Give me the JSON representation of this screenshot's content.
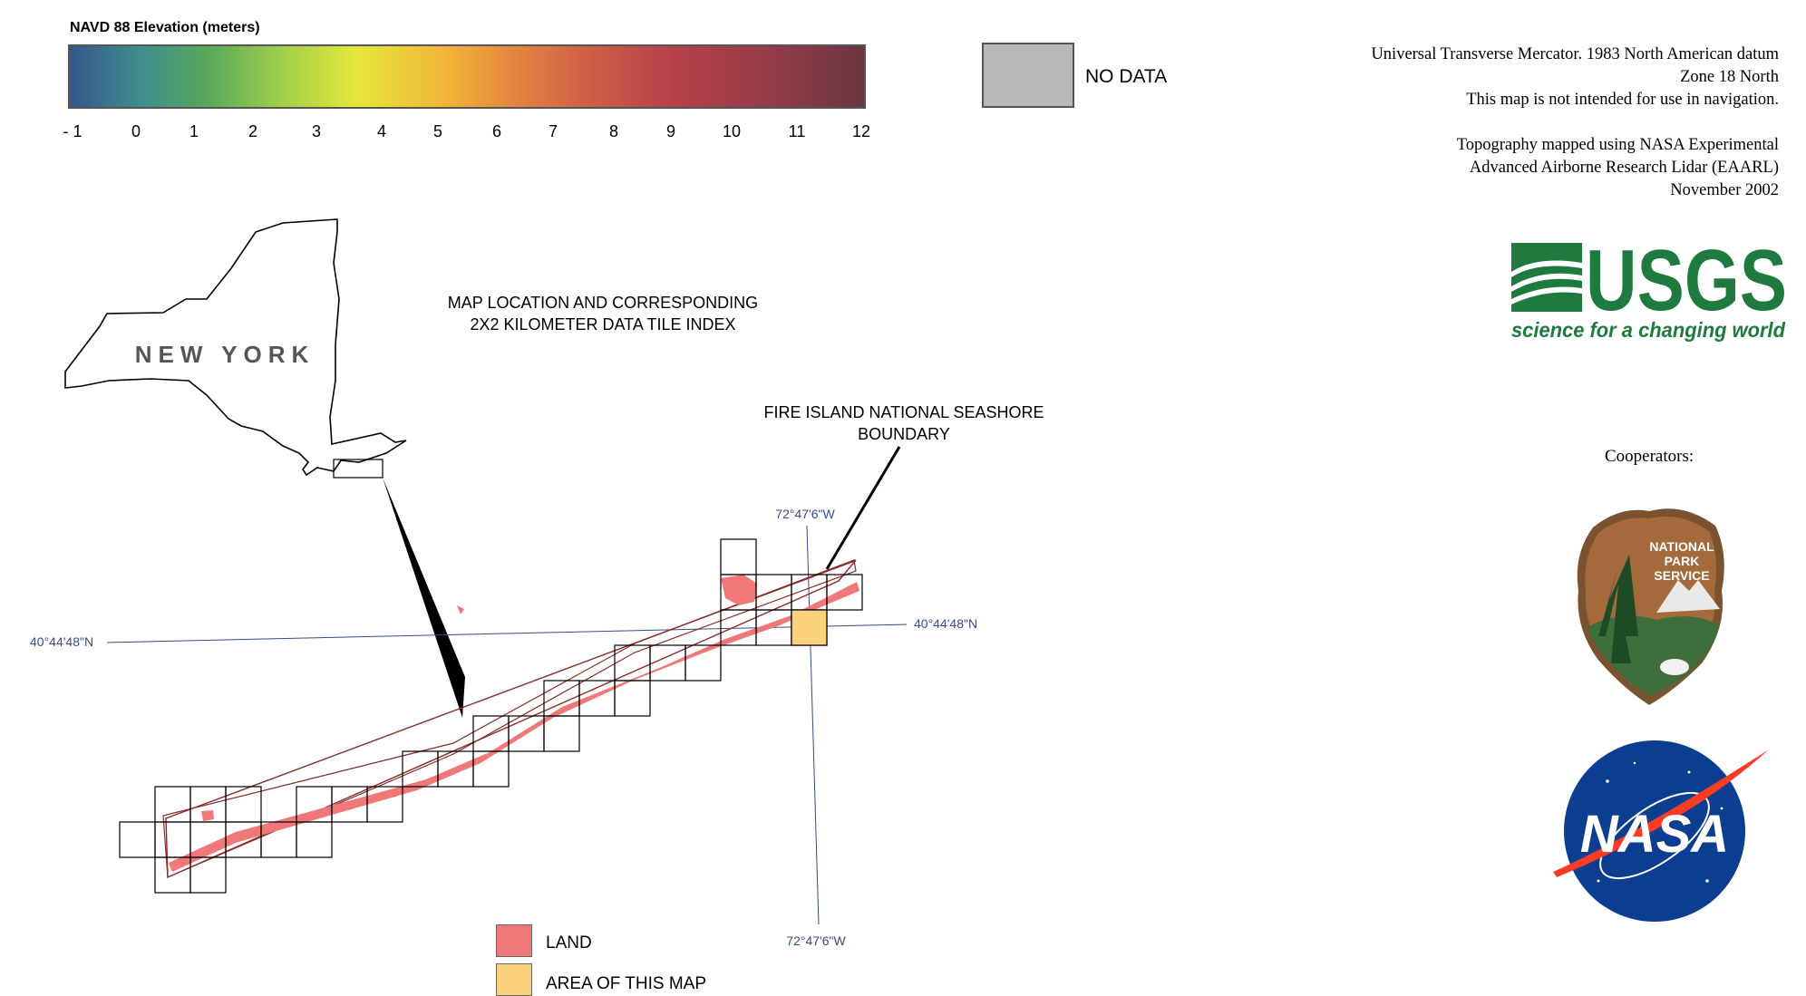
{
  "legend": {
    "title": "NAVD 88 Elevation (meters)",
    "ticks": [
      "- 1",
      "0",
      "1",
      "2",
      "3",
      "4",
      "5",
      "6",
      "7",
      "8",
      "9",
      "10",
      "11",
      "12"
    ],
    "range": [
      -1,
      12
    ],
    "ramp_colors": [
      "#34578c",
      "#3e8e8c",
      "#55a85c",
      "#9ccc4c",
      "#e5e83a",
      "#f2b13a",
      "#e78a3f",
      "#cf5f45",
      "#b6404a",
      "#953c48",
      "#6a3640"
    ]
  },
  "no_data": {
    "label": "NO DATA",
    "color": "#b8b8b8"
  },
  "notes": {
    "projection": [
      "Universal Transverse Mercator.  1983 North American datum",
      "Zone 18 North",
      "This map is not intended for use in navigation."
    ],
    "topography": [
      "Topography mapped using NASA Experimental",
      "Advanced Airborne Research Lidar (EAARL)",
      "November 2002"
    ]
  },
  "usgs": {
    "name": "USGS",
    "tagline": "science for a changing world",
    "color": "#1e7a3e"
  },
  "cooperators_label": "Cooperators:",
  "nps": {
    "lines": [
      "NATIONAL",
      "PARK",
      "SERVICE"
    ]
  },
  "nasa": {
    "name": "NASA"
  },
  "index_map": {
    "title_lines": [
      "MAP LOCATION AND CORRESPONDING",
      "2X2 KILOMETER DATA TILE INDEX"
    ],
    "state_label": "NEW YORK",
    "boundary_label_lines": [
      "FIRE ISLAND NATIONAL SEASHORE",
      "BOUNDARY"
    ],
    "lon_label_top": "72°47'6\"W",
    "lon_label_bottom": "72°47'6\"W",
    "lat_label_left": "40°44'48\"N",
    "lat_label_right": "40°44'48\"N",
    "land_color": "#f07878",
    "area_color": "#fad27e"
  },
  "map_legend": {
    "land_label": "LAND",
    "area_label": "AREA OF THIS MAP"
  }
}
